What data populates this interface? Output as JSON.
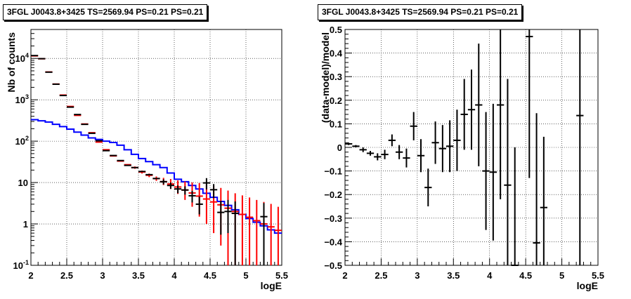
{
  "chart_data": [
    {
      "type": "histogram",
      "title": "3FGL J0043.8+3425 TS=2569.94 PS=0.21 PS=0.21",
      "xlabel": "logE",
      "ylabel": "Nb of counts",
      "xlim": [
        2,
        5.5
      ],
      "ylim": [
        0.1,
        50000
      ],
      "yscale": "log",
      "grid": true,
      "x_ticks": [
        "2",
        "2.5",
        "3",
        "3.5",
        "4",
        "4.5",
        "5",
        "5.5"
      ],
      "y_ticks": [
        "10^{-1}",
        "1",
        "10",
        "10^{2}",
        "10^{3}",
        "10^{4}"
      ],
      "series": [
        {
          "color": "#ff0000",
          "style": "error-bars",
          "x": [
            2.05,
            2.15,
            2.25,
            2.35,
            2.45,
            2.55,
            2.65,
            2.75,
            2.85,
            2.95,
            3.05,
            3.15,
            3.25,
            3.35,
            3.45,
            3.55,
            3.65,
            3.75,
            3.85,
            3.95,
            4.05,
            4.15,
            4.25,
            4.35,
            4.45,
            4.55,
            4.65,
            4.75,
            4.85,
            4.95,
            5.05,
            5.15,
            5.25,
            5.35,
            5.45
          ],
          "y": [
            11500,
            9800,
            4700,
            2400,
            1300,
            690,
            420,
            260,
            160,
            95,
            62,
            44,
            33,
            27,
            23,
            18,
            15,
            12.5,
            10.5,
            9.2,
            7.8,
            6.6,
            5.6,
            4.7,
            4.0,
            3.4,
            2.9,
            2.4,
            2.0,
            1.7,
            1.45,
            1.2,
            1.0,
            0.85,
            0.7
          ],
          "err_lo": [
            0,
            0,
            0,
            0,
            0,
            0,
            0,
            0,
            0,
            0,
            0,
            0,
            0,
            0,
            1.5,
            1.5,
            1.5,
            1.5,
            1.8,
            2.2,
            2.5,
            2.8,
            3.0,
            3.2,
            3.0,
            2.8,
            2.6,
            2.3,
            1.99,
            1.69,
            1.44,
            1.19,
            0.99,
            0.84,
            0.69
          ],
          "err_hi": [
            0,
            0,
            0,
            0,
            0,
            0,
            0,
            0,
            0,
            0,
            0,
            0,
            0,
            0,
            1.5,
            1.5,
            1.5,
            1.5,
            2.5,
            3.0,
            3.5,
            4.0,
            4.5,
            5.0,
            5.0,
            4.8,
            4.5,
            4.0,
            3.5,
            3.2,
            2.9,
            2.6,
            2.4,
            2.2,
            1.9
          ]
        },
        {
          "color": "#000000",
          "style": "data-points",
          "x": [
            2.05,
            2.15,
            2.25,
            2.35,
            2.45,
            2.55,
            2.65,
            2.75,
            2.85,
            2.95,
            3.05,
            3.15,
            3.25,
            3.35,
            3.45,
            3.55,
            3.65,
            3.75,
            3.85,
            3.95,
            4.05,
            4.15,
            4.25,
            4.35,
            4.45,
            4.55,
            4.65,
            4.75,
            4.85,
            5.25
          ],
          "y": [
            11700,
            9850,
            4650,
            2380,
            1270,
            665,
            440,
            255,
            155,
            102,
            59,
            45,
            34,
            26,
            23,
            18.5,
            15.5,
            12.5,
            10.5,
            8.5,
            7,
            6.6,
            4.8,
            3.0,
            9.8,
            6.7,
            1.9,
            2.0,
            1.8,
            1.5
          ],
          "err_lo": [
            0,
            0,
            0,
            0,
            0,
            0,
            0,
            0,
            0,
            0,
            0,
            0,
            0,
            0,
            0,
            0,
            0,
            0,
            1.5,
            1.5,
            1.5,
            1.5,
            1.5,
            1.3,
            3.0,
            2.5,
            1.35,
            1.4,
            1.7,
            1.4
          ],
          "err_hi": [
            0,
            0,
            0,
            0,
            0,
            0,
            0,
            0,
            0,
            0,
            0,
            0,
            0,
            0,
            0,
            0,
            0,
            0,
            1.5,
            1.5,
            1.5,
            1.5,
            1.5,
            1.6,
            3.0,
            2.5,
            1.7,
            1.8,
            1.7,
            1.7
          ]
        },
        {
          "color": "#0000ff",
          "style": "step",
          "edges": [
            2.0,
            2.1,
            2.2,
            2.3,
            2.4,
            2.5,
            2.6,
            2.7,
            2.8,
            2.9,
            3.0,
            3.1,
            3.2,
            3.3,
            3.4,
            3.5,
            3.6,
            3.7,
            3.8,
            3.9,
            4.0,
            4.1,
            4.2,
            4.3,
            4.4,
            4.5,
            4.6,
            4.7,
            4.8,
            4.9,
            5.0,
            5.1,
            5.2,
            5.3,
            5.4,
            5.5
          ],
          "y": [
            330,
            310,
            290,
            255,
            225,
            195,
            165,
            140,
            120,
            110,
            100,
            93,
            80,
            62,
            48,
            38,
            32,
            27,
            23,
            17,
            12,
            10.5,
            8.5,
            7.0,
            5.5,
            4.4,
            3.5,
            2.8,
            2.2,
            1.7,
            1.35,
            1.1,
            0.9,
            0.72,
            0.6
          ]
        }
      ]
    },
    {
      "type": "scatter",
      "title": "3FGL J0043.8+3425 TS=2569.94 PS=0.21 PS=0.21",
      "xlabel": "logE",
      "ylabel": "(data-model)/model",
      "xlim": [
        2,
        5.5
      ],
      "ylim": [
        -0.5,
        0.5
      ],
      "grid": true,
      "x_ticks": [
        "2",
        "2.5",
        "3",
        "3.5",
        "4",
        "4.5",
        "5",
        "5.5"
      ],
      "y_ticks": [
        "−0.5",
        "−0.4",
        "−0.3",
        "−0.2",
        "−0.1",
        "0",
        "0.1",
        "0.2",
        "0.3",
        "0.4",
        "0.5"
      ],
      "series": [
        {
          "color": "#000000",
          "x": [
            2.05,
            2.15,
            2.25,
            2.35,
            2.45,
            2.55,
            2.65,
            2.75,
            2.85,
            2.95,
            3.05,
            3.15,
            3.25,
            3.35,
            3.45,
            3.55,
            3.65,
            3.75,
            3.85,
            3.95,
            4.05,
            4.15,
            4.25,
            4.35,
            4.55,
            4.65,
            4.75,
            5.25
          ],
          "y": [
            0.015,
            0.005,
            -0.01,
            -0.025,
            -0.04,
            -0.03,
            0.03,
            -0.02,
            -0.045,
            0.09,
            -0.035,
            -0.17,
            0.02,
            -0.005,
            0.005,
            0.03,
            0.14,
            0.16,
            0.18,
            -0.1,
            -0.105,
            0.18,
            -0.16,
            -0.5,
            0.47,
            -0.405,
            -0.255,
            0.135
          ],
          "err": [
            0.005,
            0.005,
            0.01,
            0.01,
            0.015,
            0.02,
            0.025,
            0.03,
            0.04,
            0.06,
            0.07,
            0.08,
            0.09,
            0.1,
            0.11,
            0.13,
            0.15,
            0.17,
            0.26,
            0.25,
            0.29,
            0.4,
            0.45,
            0.5,
            0.6,
            0.55,
            0.3,
            0.9
          ]
        }
      ]
    }
  ]
}
